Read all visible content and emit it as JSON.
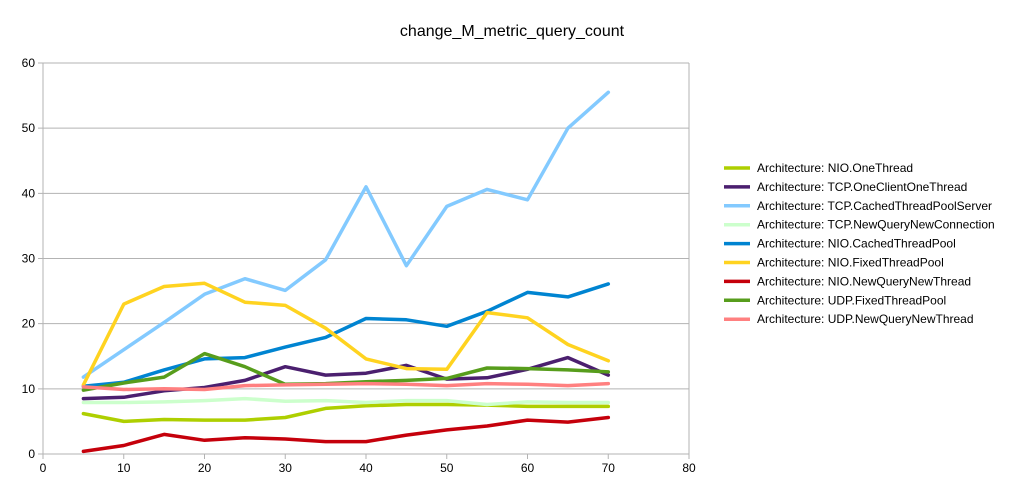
{
  "chart_data": {
    "type": "line",
    "title": "change_M_metric_query_count",
    "xlabel": "",
    "ylabel": "",
    "xlim": [
      0,
      80
    ],
    "ylim": [
      0,
      60
    ],
    "x_ticks": [
      0,
      10,
      20,
      30,
      40,
      50,
      60,
      70,
      80
    ],
    "y_ticks": [
      0,
      10,
      20,
      30,
      40,
      50,
      60
    ],
    "grid": "horizontal",
    "legend_position": "right",
    "x": [
      5,
      10,
      15,
      20,
      25,
      30,
      35,
      40,
      45,
      50,
      55,
      60,
      65,
      70
    ],
    "series": [
      {
        "name": "Architecture: NIO.OneThread",
        "color": "#aecf00",
        "values": [
          6.2,
          5.0,
          5.3,
          5.2,
          5.2,
          5.6,
          7.0,
          7.4,
          7.6,
          7.6,
          7.5,
          7.3,
          7.3,
          7.3
        ]
      },
      {
        "name": "Architecture: TCP.OneClientOneThread",
        "color": "#4b1f6f",
        "values": [
          8.5,
          8.7,
          9.7,
          10.2,
          11.3,
          13.4,
          12.1,
          12.4,
          13.6,
          11.5,
          11.7,
          13.0,
          14.8,
          12.1
        ]
      },
      {
        "name": "Architecture: TCP.CachedThreadPoolServer",
        "color": "#83caff",
        "values": [
          11.8,
          16.0,
          20.2,
          24.5,
          26.9,
          25.1,
          29.8,
          41.0,
          28.9,
          38.0,
          40.6,
          39.0,
          50.0,
          55.5
        ]
      },
      {
        "name": "Architecture: TCP.NewQueryNewConnection",
        "color": "#ccffcc",
        "values": [
          7.9,
          7.9,
          8.0,
          8.2,
          8.5,
          8.1,
          8.2,
          7.9,
          8.2,
          8.2,
          7.6,
          8.0,
          7.9,
          7.9
        ]
      },
      {
        "name": "Architecture: NIO.CachedThreadPool",
        "color": "#0084d1",
        "values": [
          10.4,
          11.0,
          12.9,
          14.6,
          14.8,
          16.4,
          17.9,
          20.8,
          20.6,
          19.6,
          21.9,
          24.8,
          24.1,
          26.1
        ]
      },
      {
        "name": "Architecture: NIO.FixedThreadPool",
        "color": "#ffd320",
        "values": [
          10.6,
          23.0,
          25.7,
          26.2,
          23.3,
          22.8,
          19.3,
          14.6,
          13.1,
          13.0,
          21.7,
          20.9,
          16.8,
          14.3
        ]
      },
      {
        "name": "Architecture: NIO.NewQueryNewThread",
        "color": "#c5000b",
        "values": [
          0.4,
          1.3,
          3.0,
          2.1,
          2.5,
          2.3,
          1.9,
          1.9,
          2.9,
          3.7,
          4.3,
          5.2,
          4.9,
          5.6
        ]
      },
      {
        "name": "Architecture: UDP.FixedThreadPool",
        "color": "#579d1c",
        "values": [
          9.8,
          10.9,
          11.8,
          15.4,
          13.4,
          10.7,
          10.8,
          11.1,
          11.3,
          11.6,
          13.2,
          13.1,
          12.9,
          12.6
        ]
      },
      {
        "name": "Architecture: UDP.NewQueryNewThread",
        "color": "#ff8080",
        "values": [
          10.3,
          9.9,
          10.0,
          9.9,
          10.5,
          10.6,
          10.7,
          10.8,
          10.7,
          10.5,
          10.8,
          10.7,
          10.5,
          10.8
        ]
      }
    ]
  }
}
